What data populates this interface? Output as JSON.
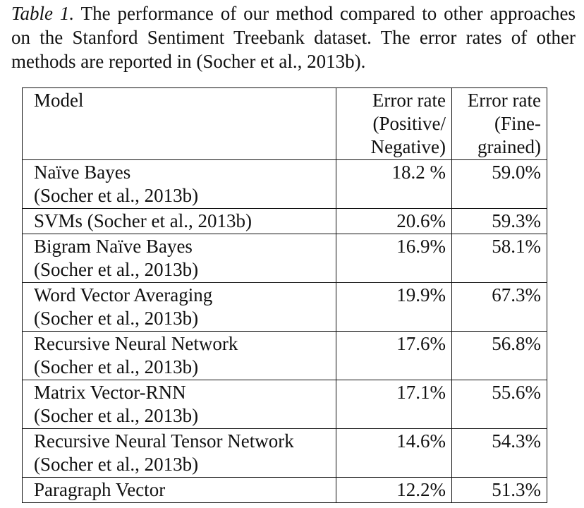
{
  "caption": {
    "label": "Table 1.",
    "text": " The performance of our method compared to other approaches on the Stanford Sentiment Treebank dataset. The error rates of other methods are reported in (Socher et al., 2013b)."
  },
  "table": {
    "headers": {
      "model": "Model",
      "positive_negative": [
        "Error rate",
        "(Positive/",
        "Negative)"
      ],
      "fine_grained": [
        "Error rate",
        "(Fine-",
        "grained)"
      ]
    },
    "rows": [
      {
        "model": [
          "Naïve Bayes",
          "(Socher et al., 2013b)"
        ],
        "positive_negative": "18.2 %",
        "fine_grained": "59.0%"
      },
      {
        "model": [
          "SVMs (Socher et al., 2013b)"
        ],
        "positive_negative": "20.6%",
        "fine_grained": "59.3%"
      },
      {
        "model": [
          "Bigram Naïve Bayes",
          "(Socher et al., 2013b)"
        ],
        "positive_negative": "16.9%",
        "fine_grained": "58.1%"
      },
      {
        "model": [
          "Word Vector Averaging",
          "(Socher et al., 2013b)"
        ],
        "positive_negative": "19.9%",
        "fine_grained": "67.3%"
      },
      {
        "model": [
          "Recursive Neural Network",
          "(Socher et al., 2013b)"
        ],
        "positive_negative": "17.6%",
        "fine_grained": "56.8%"
      },
      {
        "model": [
          "Matrix Vector-RNN",
          "(Socher et al., 2013b)"
        ],
        "positive_negative": "17.1%",
        "fine_grained": "55.6%"
      },
      {
        "model": [
          "Recursive Neural Tensor Network",
          "(Socher et al., 2013b)"
        ],
        "positive_negative": "14.6%",
        "fine_grained": "54.3%"
      },
      {
        "model": [
          "Paragraph Vector"
        ],
        "positive_negative": "12.2%",
        "fine_grained": "51.3%",
        "bold_values": true
      }
    ]
  }
}
